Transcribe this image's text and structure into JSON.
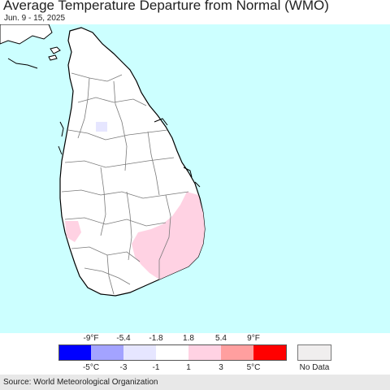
{
  "title": "Average Temperature Departure from Normal (WMO)",
  "subtitle": "Jun. 9 - 15, 2025",
  "colors": {
    "ocean": "#ccffff",
    "land": "#ffffff",
    "above_1": "#ffd2e3",
    "below_1": "#e6e6ff"
  },
  "legend": {
    "fahrenheit_ticks": [
      "-9°F",
      "-5.4",
      "-1.8",
      "1.8",
      "5.4",
      "9°F"
    ],
    "celsius_ticks": [
      "-5°C",
      "-3",
      "-1",
      "1",
      "3",
      "5°C"
    ],
    "bins": [
      {
        "color": "#0000ff"
      },
      {
        "color": "#a3a3ff"
      },
      {
        "color": "#e6e6ff"
      },
      {
        "color": "#ffffff"
      },
      {
        "color": "#ffd2e3"
      },
      {
        "color": "#ff9f9f"
      },
      {
        "color": "#ff0000"
      }
    ],
    "no_data_label": "No Data",
    "no_data_color": "#f0eeee"
  },
  "source": "Source: World Meteorological Organization"
}
